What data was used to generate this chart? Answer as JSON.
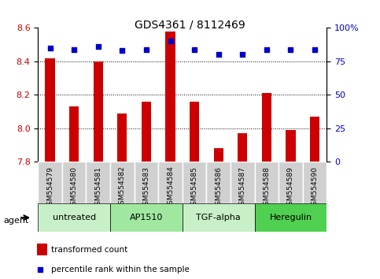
{
  "title": "GDS4361 / 8112469",
  "samples": [
    "GSM554579",
    "GSM554580",
    "GSM554581",
    "GSM554582",
    "GSM554583",
    "GSM554584",
    "GSM554585",
    "GSM554586",
    "GSM554587",
    "GSM554588",
    "GSM554589",
    "GSM554590"
  ],
  "red_values": [
    8.42,
    8.13,
    8.4,
    8.09,
    8.16,
    8.58,
    8.16,
    7.88,
    7.97,
    8.21,
    7.99,
    8.07
  ],
  "blue_values": [
    85,
    84,
    86,
    83,
    84,
    90,
    84,
    80,
    80,
    84,
    84,
    84
  ],
  "ylim_left": [
    7.8,
    8.6
  ],
  "ylim_right": [
    0,
    100
  ],
  "yticks_left": [
    7.8,
    8.0,
    8.2,
    8.4,
    8.6
  ],
  "yticks_right": [
    0,
    25,
    50,
    75,
    100
  ],
  "ytick_labels_right": [
    "0",
    "25",
    "50",
    "75",
    "100%"
  ],
  "left_color": "#cc0000",
  "right_color": "#0000cc",
  "bar_color": "#cc0000",
  "marker_color": "#0000cc",
  "grid_color": "#000000",
  "agent_groups": [
    {
      "label": "untreated",
      "start": 0,
      "end": 3,
      "color": "#c8f0c8"
    },
    {
      "label": "AP1510",
      "start": 3,
      "end": 6,
      "color": "#a0e8a0"
    },
    {
      "label": "TGF-alpha",
      "start": 6,
      "end": 9,
      "color": "#c8f0c8"
    },
    {
      "label": "Heregulin",
      "start": 9,
      "end": 12,
      "color": "#50d050"
    }
  ],
  "tick_bg_color": "#d0d0d0",
  "agent_label": "agent",
  "legend_red": "transformed count",
  "legend_blue": "percentile rank within the sample",
  "bar_width": 0.4
}
